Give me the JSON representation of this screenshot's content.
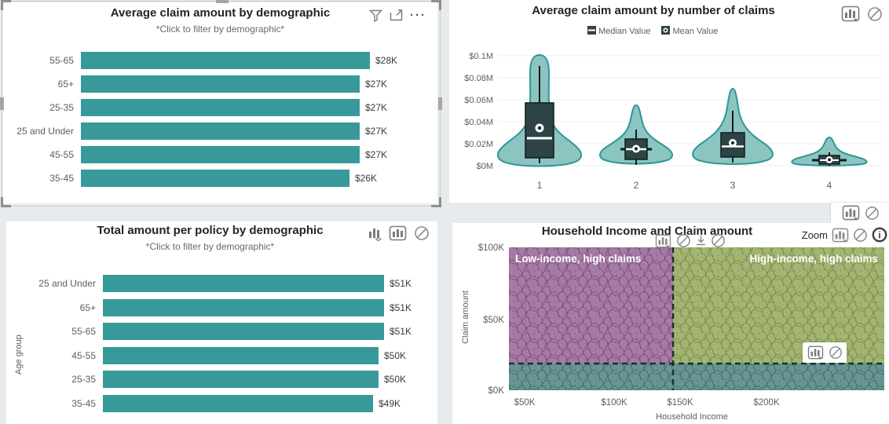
{
  "ui": {
    "background": "#e8ebee",
    "panel_bg": "#ffffff",
    "accent_teal": "#38999a",
    "zoom_label": "Zoom",
    "tl_toolbar_icons": [
      "filter-icon",
      "focus-mode-icon",
      "more-options-icon"
    ],
    "tr_toolbar_icons": [
      "show-as-table-icon",
      "prohibited-icon"
    ],
    "bl_toolbar_icons": [
      "chart-filter-icon",
      "column-chart-icon",
      "prohibited-icon"
    ],
    "br_toolbar_icons": [
      "show-as-table-icon",
      "prohibited-icon",
      "info-icon"
    ]
  },
  "chart_data": [
    {
      "type": "bar",
      "orientation": "horizontal",
      "title": "Average claim amount by demographic",
      "subtitle": "*Click to filter by demographic*",
      "categories": [
        "55-65",
        "65+",
        "25-35",
        "25 and Under",
        "45-55",
        "35-45"
      ],
      "values": [
        28000,
        27000,
        27000,
        27000,
        27000,
        26000
      ],
      "labels": [
        "$28K",
        "$27K",
        "$27K",
        "$27K",
        "$27K",
        "$26K"
      ],
      "bar_color": "#38999a",
      "xlim": [
        0,
        29000
      ],
      "grid": false
    },
    {
      "type": "violin",
      "title": "Average claim amount by number of claims",
      "legend": [
        "Median Value",
        "Mean Value"
      ],
      "legend_position": "top",
      "categories": [
        "1",
        "2",
        "3",
        "4"
      ],
      "y_ticks": [
        "$0M",
        "$0.02M",
        "$0.04M",
        "$0.06M",
        "$0.08M",
        "$0.1M"
      ],
      "ylim_millions": [
        0,
        0.1
      ],
      "series": [
        {
          "claims": "1",
          "whisker_low": 0.002,
          "q1": 0.007,
          "median": 0.025,
          "mean": 0.034,
          "q3": 0.057,
          "whisker_high": 0.091,
          "density_peak": 0.1
        },
        {
          "claims": "2",
          "whisker_low": 0.001,
          "q1": 0.006,
          "median": 0.015,
          "mean": 0.016,
          "q3": 0.024,
          "whisker_high": 0.033,
          "density_peak": 0.055
        },
        {
          "claims": "3",
          "whisker_low": 0.003,
          "q1": 0.009,
          "median": 0.018,
          "mean": 0.021,
          "q3": 0.03,
          "whisker_high": 0.05,
          "density_peak": 0.07
        },
        {
          "claims": "4",
          "whisker_low": 0.001,
          "q1": 0.003,
          "median": 0.005,
          "mean": 0.006,
          "q3": 0.009,
          "whisker_high": 0.012,
          "density_peak": 0.026
        }
      ],
      "violin_fill": "#8cc4c1",
      "violin_stroke": "#2f9795",
      "box_fill": "#2e4345"
    },
    {
      "type": "bar",
      "orientation": "horizontal",
      "title": "Total amount per policy by demographic",
      "subtitle": "*Click to filter by demographic*",
      "ylabel": "Age group",
      "categories": [
        "25 and Under",
        "65+",
        "55-65",
        "45-55",
        "25-35",
        "35-45"
      ],
      "values": [
        51000,
        51000,
        51000,
        50000,
        50000,
        49000
      ],
      "labels": [
        "$51K",
        "$51K",
        "$51K",
        "$50K",
        "$50K",
        "$49K"
      ],
      "bar_color": "#38999a",
      "xlim": [
        0,
        52000
      ],
      "grid": false
    },
    {
      "type": "scatter",
      "title": "Household Income and Claim amount",
      "xlabel": "Household Income",
      "ylabel": "Claim amount",
      "x_ticks": [
        "$50K",
        "$100K",
        "$150K",
        "$200K"
      ],
      "y_ticks": [
        "$0K",
        "$50K",
        "$100K"
      ],
      "xlim": [
        45000,
        270000
      ],
      "ylim": [
        0,
        100000
      ],
      "point_density": "very-high (thousands of overlapping points filling the plot)",
      "regions": [
        {
          "label": "Low-income, high claims",
          "color": "#a77aa6",
          "x_range": [
            45000,
            150000
          ],
          "y_range": [
            20000,
            100000
          ]
        },
        {
          "label": "High-income, high claims",
          "color": "#a4b472",
          "x_range": [
            150000,
            270000
          ],
          "y_range": [
            20000,
            100000
          ]
        },
        {
          "label": "",
          "color": "#689494",
          "x_range": [
            45000,
            270000
          ],
          "y_range": [
            0,
            20000
          ]
        }
      ],
      "dividers": {
        "income_threshold": 150000,
        "claim_threshold": 20000,
        "style": "black-dashed"
      }
    }
  ]
}
